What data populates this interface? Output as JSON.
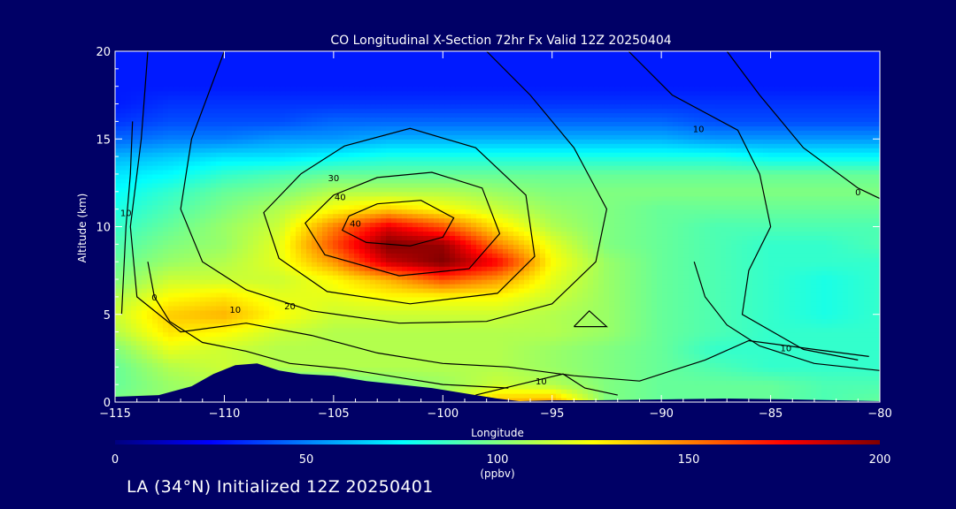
{
  "chart_data": {
    "type": "heatmap",
    "title": "CO Longitudinal X-Section 72hr  Fx Valid 12Z 20250404",
    "xlabel": "Longitude",
    "ylabel": "Altitude (km)",
    "xlim": [
      -115,
      -80
    ],
    "ylim": [
      0,
      20
    ],
    "x_ticks": [
      -115,
      -110,
      -105,
      -100,
      -95,
      -90,
      -85,
      -80
    ],
    "x_tick_labels": [
      "−115",
      "−110",
      "−105",
      "−100",
      "−95",
      "−90",
      "−85",
      "−80"
    ],
    "y_ticks": [
      0,
      5,
      10,
      15,
      20
    ],
    "y_tick_labels": [
      "0",
      "5",
      "10",
      "15",
      "20"
    ],
    "x": [
      -115,
      -112.5,
      -110,
      -107.5,
      -105,
      -102.5,
      -100,
      -97.5,
      -95,
      -92.5,
      -90,
      -87.5,
      -85,
      -82.5,
      -80
    ],
    "y": [
      0,
      1,
      2,
      3,
      4,
      5,
      6,
      7,
      8,
      9,
      10,
      11,
      12,
      13,
      14,
      15,
      16,
      17,
      18,
      19,
      20
    ],
    "co_ppbv": [
      [
        100,
        105,
        105,
        90,
        90,
        95,
        110,
        140,
        145,
        100,
        95,
        95,
        95,
        90,
        95
      ],
      [
        95,
        105,
        110,
        90,
        95,
        100,
        105,
        115,
        110,
        100,
        95,
        95,
        95,
        90,
        90
      ],
      [
        95,
        110,
        115,
        110,
        110,
        110,
        110,
        110,
        105,
        100,
        95,
        90,
        85,
        85,
        85
      ],
      [
        100,
        120,
        115,
        110,
        110,
        110,
        110,
        110,
        105,
        100,
        95,
        85,
        85,
        85,
        85
      ],
      [
        110,
        130,
        125,
        115,
        110,
        110,
        110,
        110,
        110,
        105,
        95,
        90,
        85,
        85,
        85
      ],
      [
        115,
        135,
        140,
        125,
        115,
        115,
        115,
        115,
        110,
        105,
        95,
        90,
        85,
        80,
        85
      ],
      [
        110,
        125,
        130,
        120,
        120,
        125,
        125,
        125,
        115,
        105,
        95,
        90,
        85,
        80,
        85
      ],
      [
        100,
        115,
        115,
        115,
        125,
        140,
        160,
        145,
        120,
        105,
        95,
        90,
        85,
        80,
        85
      ],
      [
        95,
        105,
        110,
        120,
        145,
        185,
        200,
        175,
        125,
        105,
        95,
        90,
        85,
        85,
        85
      ],
      [
        90,
        100,
        105,
        120,
        160,
        200,
        195,
        150,
        120,
        100,
        95,
        90,
        85,
        85,
        90
      ],
      [
        85,
        95,
        105,
        115,
        150,
        180,
        160,
        130,
        110,
        100,
        95,
        90,
        90,
        90,
        90
      ],
      [
        80,
        90,
        100,
        110,
        125,
        135,
        125,
        115,
        105,
        100,
        95,
        95,
        95,
        95,
        95
      ],
      [
        75,
        85,
        95,
        100,
        110,
        110,
        110,
        105,
        100,
        100,
        100,
        100,
        100,
        100,
        100
      ],
      [
        70,
        75,
        85,
        90,
        95,
        95,
        95,
        95,
        95,
        95,
        95,
        95,
        95,
        95,
        95
      ],
      [
        60,
        65,
        70,
        70,
        75,
        80,
        80,
        80,
        80,
        80,
        80,
        80,
        75,
        75,
        75
      ],
      [
        45,
        50,
        50,
        55,
        55,
        60,
        60,
        60,
        60,
        60,
        60,
        55,
        55,
        55,
        55
      ],
      [
        35,
        40,
        40,
        40,
        45,
        45,
        45,
        45,
        45,
        45,
        45,
        40,
        40,
        40,
        40
      ],
      [
        30,
        35,
        35,
        35,
        35,
        35,
        35,
        35,
        35,
        35,
        35,
        35,
        35,
        35,
        35
      ],
      [
        30,
        30,
        30,
        30,
        30,
        30,
        30,
        30,
        30,
        30,
        30,
        30,
        30,
        30,
        30
      ],
      [
        30,
        30,
        30,
        30,
        30,
        30,
        30,
        30,
        30,
        30,
        30,
        30,
        30,
        30,
        30
      ],
      [
        30,
        30,
        30,
        30,
        30,
        30,
        30,
        30,
        30,
        30,
        30,
        30,
        30,
        30,
        30
      ]
    ],
    "terrain_km": [
      [
        -115,
        0.3
      ],
      [
        -113,
        0.4
      ],
      [
        -111.5,
        0.9
      ],
      [
        -110.5,
        1.6
      ],
      [
        -109.5,
        2.1
      ],
      [
        -108.5,
        2.2
      ],
      [
        -107.5,
        1.8
      ],
      [
        -106.5,
        1.6
      ],
      [
        -105,
        1.5
      ],
      [
        -103.5,
        1.2
      ],
      [
        -102,
        1.0
      ],
      [
        -100.5,
        0.8
      ],
      [
        -99,
        0.5
      ],
      [
        -97.5,
        0.2
      ],
      [
        -96.5,
        0.05
      ],
      [
        -95,
        0.1
      ],
      [
        -93,
        0.1
      ],
      [
        -90,
        0.15
      ],
      [
        -87,
        0.2
      ],
      [
        -84,
        0.15
      ],
      [
        -82,
        0.1
      ],
      [
        -80,
        0.05
      ]
    ],
    "contours": [
      {
        "label": "10",
        "label_at": [
          -109.5,
          5.1
        ],
        "points": [
          [
            -113.5,
            20
          ],
          [
            -113.8,
            15
          ],
          [
            -114.3,
            10
          ],
          [
            -114,
            6
          ],
          [
            -112,
            4
          ],
          [
            -109,
            4.5
          ],
          [
            -106,
            3.8
          ],
          [
            -103,
            2.8
          ],
          [
            -100,
            2.2
          ],
          [
            -97,
            2
          ],
          [
            -94,
            1.5
          ],
          [
            -91,
            1.2
          ],
          [
            -88,
            2.4
          ],
          [
            -86,
            3.5
          ],
          [
            -83,
            3
          ],
          [
            -80.5,
            2.6
          ]
        ]
      },
      {
        "label": "20",
        "label_at": [
          -107,
          5.3
        ],
        "points": [
          [
            -110,
            20
          ],
          [
            -111.5,
            15
          ],
          [
            -112,
            11
          ],
          [
            -111,
            8
          ],
          [
            -109,
            6.4
          ],
          [
            -106,
            5.2
          ],
          [
            -102,
            4.5
          ],
          [
            -98,
            4.6
          ],
          [
            -95,
            5.6
          ],
          [
            -93,
            8
          ],
          [
            -92.5,
            11
          ],
          [
            -94,
            14.5
          ],
          [
            -96,
            17.5
          ],
          [
            -98,
            20
          ]
        ]
      },
      {
        "label": "30",
        "label_at": [
          -105,
          12.6
        ],
        "points": [
          [
            -106.5,
            13
          ],
          [
            -108.2,
            10.8
          ],
          [
            -107.5,
            8.2
          ],
          [
            -105.3,
            6.3
          ],
          [
            -101.5,
            5.6
          ],
          [
            -97.5,
            6.2
          ],
          [
            -95.8,
            8.3
          ],
          [
            -96.2,
            11.8
          ],
          [
            -98.5,
            14.5
          ],
          [
            -101.5,
            15.6
          ],
          [
            -104.5,
            14.6
          ],
          [
            -106.5,
            13
          ]
        ]
      },
      {
        "label": "40",
        "label_at": [
          -104.7,
          11.5
        ],
        "points": [
          [
            -105,
            11.8
          ],
          [
            -106.3,
            10.2
          ],
          [
            -105.4,
            8.4
          ],
          [
            -102,
            7.2
          ],
          [
            -98.8,
            7.6
          ],
          [
            -97.4,
            9.6
          ],
          [
            -98.2,
            12.2
          ],
          [
            -100.5,
            13.1
          ],
          [
            -103,
            12.8
          ],
          [
            -105,
            11.8
          ]
        ]
      },
      {
        "label": "40",
        "label_at": [
          -104,
          10
        ],
        "points": [
          [
            -104.3,
            10.6
          ],
          [
            -104.6,
            9.8
          ],
          [
            -103.5,
            9.1
          ],
          [
            -101.5,
            8.9
          ],
          [
            -100,
            9.4
          ],
          [
            -99.5,
            10.5
          ],
          [
            -101,
            11.5
          ],
          [
            -103,
            11.3
          ],
          [
            -104.3,
            10.6
          ]
        ]
      },
      {
        "label": "10",
        "label_at": [
          -88.3,
          15.4
        ],
        "points": [
          [
            -91.5,
            20
          ],
          [
            -89.5,
            17.5
          ],
          [
            -86.5,
            15.5
          ],
          [
            -85.5,
            13
          ],
          [
            -85,
            10
          ],
          [
            -86,
            7.5
          ],
          [
            -86.3,
            5
          ],
          [
            -83.5,
            3
          ],
          [
            -81,
            2.4
          ]
        ]
      },
      {
        "label": "0",
        "label_at": [
          -81,
          11.8
        ],
        "points": [
          [
            -87,
            20
          ],
          [
            -85.5,
            17.5
          ],
          [
            -83.5,
            14.5
          ],
          [
            -81,
            12.2
          ],
          [
            -80,
            11.6
          ]
        ]
      },
      {
        "label": "10",
        "label_at": [
          -84.3,
          2.9
        ],
        "points": [
          [
            -88.5,
            8
          ],
          [
            -88,
            6
          ],
          [
            -87,
            4.4
          ],
          [
            -85.5,
            3.2
          ],
          [
            -83,
            2.2
          ],
          [
            -80,
            1.8
          ]
        ]
      },
      {
        "label": "10",
        "label_at": [
          -95.5,
          1
        ],
        "points": [
          [
            -98.5,
            0.4
          ],
          [
            -96.5,
            1
          ],
          [
            -94.5,
            1.6
          ],
          [
            -93.5,
            0.8
          ],
          [
            -92,
            0.4
          ]
        ]
      },
      {
        "label": "10",
        "label_at": [
          -114.5,
          10.6
        ],
        "points": [
          [
            -114.7,
            5
          ],
          [
            -114.5,
            10
          ],
          [
            -114.3,
            13
          ],
          [
            -114.2,
            16
          ]
        ]
      },
      {
        "label": "0",
        "label_at": [
          -113.2,
          5.8
        ],
        "points": [
          [
            -113.5,
            8
          ],
          [
            -113.2,
            6
          ],
          [
            -112.5,
            4.6
          ],
          [
            -111,
            3.4
          ],
          [
            -109,
            2.9
          ],
          [
            -107,
            2.2
          ],
          [
            -104.5,
            1.9
          ],
          [
            -102,
            1.4
          ],
          [
            -100,
            1
          ],
          [
            -97,
            0.8
          ]
        ]
      },
      {
        "label": "",
        "label_at": [
          -94,
          4.3
        ],
        "points": [
          [
            -94,
            4.3
          ],
          [
            -93.3,
            5.2
          ],
          [
            -92.5,
            4.3
          ],
          [
            -94,
            4.3
          ]
        ]
      }
    ],
    "colorbar": {
      "label": "(ppbv)",
      "min": 0,
      "max": 200,
      "ticks": [
        0,
        50,
        100,
        150,
        200
      ],
      "tick_labels": [
        "0",
        "50",
        "100",
        "150",
        "200"
      ]
    },
    "colormap": [
      "#00007f",
      "#0000ff",
      "#0080ff",
      "#00ffff",
      "#80ff80",
      "#ffff00",
      "#ff8000",
      "#ff0000",
      "#7f0000"
    ],
    "background_color": "#000066",
    "terrain_color": "#000066",
    "contour_color": "#000000",
    "grid": false,
    "legend": "none"
  },
  "footer": {
    "caption": "LA (34°N) Initialized 12Z 20250401"
  }
}
